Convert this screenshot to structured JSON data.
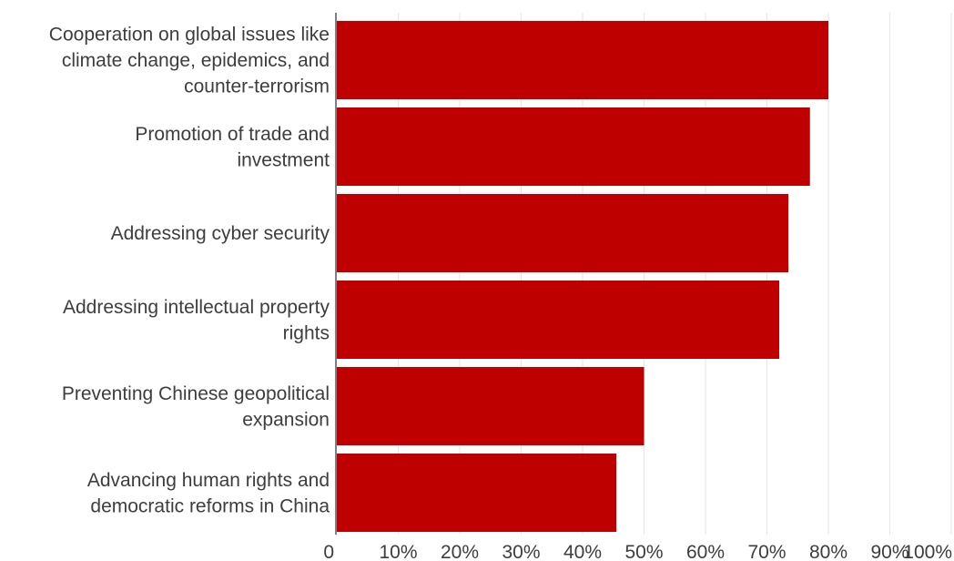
{
  "chart_data": {
    "type": "bar",
    "orientation": "horizontal",
    "categories": [
      [
        "Cooperation on global issues like",
        "climate change, epidemics, and",
        "counter-terrorism"
      ],
      [
        "Promotion of trade and",
        "investment"
      ],
      [
        "Addressing cyber security"
      ],
      [
        "Addressing intellectual property",
        "rights"
      ],
      [
        "Preventing Chinese geopolitical",
        "expansion"
      ],
      [
        "Advancing human rights and",
        "democratic reforms in China"
      ]
    ],
    "values": [
      80,
      77,
      73.5,
      72,
      50,
      45.5
    ],
    "xlim": [
      0,
      100
    ],
    "x_ticks": [
      "0",
      "10%",
      "20%",
      "30%",
      "40%",
      "50%",
      "60%",
      "70%",
      "80%",
      "90%",
      "100%"
    ],
    "grid": "vertical",
    "colors": {
      "bar": "#bf0000",
      "grid": "#e6e6e6",
      "axis": "#555555",
      "text": "#3d3d3d"
    }
  }
}
